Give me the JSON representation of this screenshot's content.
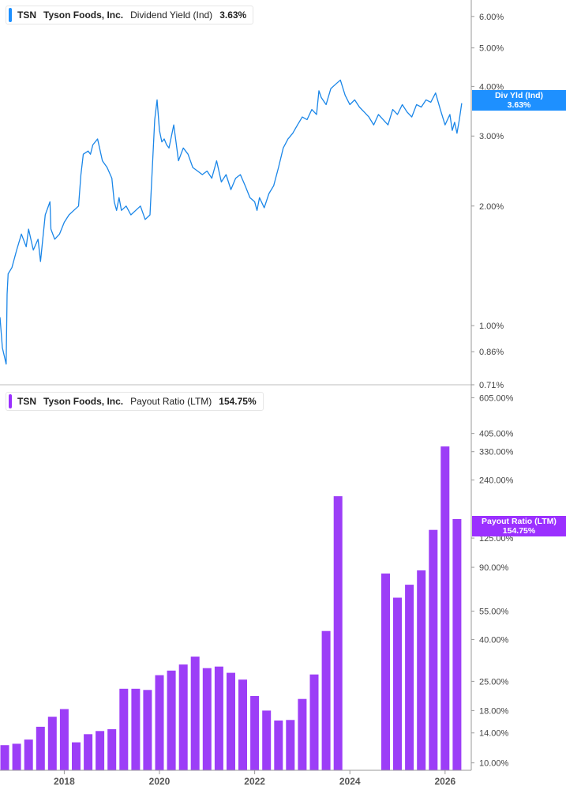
{
  "colors": {
    "yield_line": "#1a86e8",
    "payout_bar": "#9c3ef7",
    "yield_tag": "#1e90ff",
    "payout_tag": "#9b30ff",
    "axis": "#999999",
    "tick_text": "#444444"
  },
  "top_panel": {
    "legend": {
      "ticker": "TSN",
      "company": "Tyson Foods, Inc.",
      "metric": "Dividend Yield (Ind)",
      "value": "3.63%"
    },
    "tag": {
      "label": "Div Yld (Ind)",
      "value": "3.63%"
    }
  },
  "bottom_panel": {
    "legend": {
      "ticker": "TSN",
      "company": "Tyson Foods, Inc.",
      "metric": "Payout Ratio (LTM)",
      "value": "154.75%"
    },
    "tag": {
      "label": "Payout Ratio (LTM)",
      "value": "154.75%"
    }
  },
  "chart_data": [
    {
      "type": "line",
      "title": "Dividend Yield (Ind)",
      "yscale": "log",
      "ylim": [
        0.71,
        6.6
      ],
      "xlim": [
        2016.65,
        2026.55
      ],
      "yticks": [
        "6.00%",
        "5.00%",
        "4.00%",
        "3.00%",
        "2.00%",
        "1.00%",
        "0.86%",
        "0.71%"
      ],
      "xticks": [
        "2018",
        "2020",
        "2022",
        "2024",
        "2026"
      ],
      "series": [
        {
          "name": "Div Yld (Ind)",
          "x": [
            2016.65,
            2016.7,
            2016.78,
            2016.8,
            2016.82,
            2016.9,
            2017.0,
            2017.1,
            2017.2,
            2017.25,
            2017.35,
            2017.45,
            2017.5,
            2017.6,
            2017.7,
            2017.72,
            2017.8,
            2017.9,
            2018.0,
            2018.1,
            2018.2,
            2018.3,
            2018.35,
            2018.4,
            2018.5,
            2018.55,
            2018.6,
            2018.7,
            2018.8,
            2018.9,
            2019.0,
            2019.05,
            2019.1,
            2019.15,
            2019.2,
            2019.3,
            2019.4,
            2019.5,
            2019.6,
            2019.7,
            2019.8,
            2019.9,
            2019.95,
            2020.0,
            2020.05,
            2020.1,
            2020.15,
            2020.2,
            2020.3,
            2020.4,
            2020.5,
            2020.6,
            2020.7,
            2020.8,
            2020.9,
            2021.0,
            2021.1,
            2021.2,
            2021.3,
            2021.4,
            2021.5,
            2021.6,
            2021.7,
            2021.8,
            2021.9,
            2022.0,
            2022.05,
            2022.1,
            2022.2,
            2022.3,
            2022.4,
            2022.5,
            2022.6,
            2022.7,
            2022.8,
            2022.9,
            2023.0,
            2023.1,
            2023.2,
            2023.3,
            2023.35,
            2023.4,
            2023.5,
            2023.6,
            2023.7,
            2023.8,
            2023.9,
            2024.0,
            2024.1,
            2024.2,
            2024.3,
            2024.4,
            2024.5,
            2024.6,
            2024.7,
            2024.8,
            2024.9,
            2025.0,
            2025.1,
            2025.2,
            2025.3,
            2025.4,
            2025.5,
            2025.6,
            2025.7,
            2025.8,
            2025.9,
            2026.0,
            2026.1,
            2026.15,
            2026.2,
            2026.25,
            2026.3,
            2026.35
          ],
          "y": [
            1.05,
            0.88,
            0.8,
            1.2,
            1.35,
            1.4,
            1.55,
            1.7,
            1.58,
            1.75,
            1.55,
            1.65,
            1.45,
            1.9,
            2.05,
            1.75,
            1.65,
            1.7,
            1.82,
            1.9,
            1.95,
            2.0,
            2.4,
            2.7,
            2.75,
            2.7,
            2.85,
            2.95,
            2.6,
            2.5,
            2.35,
            2.05,
            1.95,
            2.1,
            1.95,
            2.0,
            1.9,
            1.95,
            2.0,
            1.85,
            1.9,
            3.3,
            3.7,
            3.1,
            2.9,
            2.95,
            2.85,
            2.8,
            3.2,
            2.6,
            2.8,
            2.7,
            2.5,
            2.45,
            2.4,
            2.45,
            2.35,
            2.6,
            2.3,
            2.4,
            2.2,
            2.35,
            2.4,
            2.25,
            2.1,
            2.05,
            1.95,
            2.1,
            1.98,
            2.15,
            2.25,
            2.5,
            2.8,
            2.95,
            3.05,
            3.2,
            3.35,
            3.3,
            3.5,
            3.4,
            3.9,
            3.75,
            3.6,
            3.95,
            4.05,
            4.15,
            3.8,
            3.6,
            3.7,
            3.55,
            3.45,
            3.35,
            3.2,
            3.4,
            3.3,
            3.2,
            3.5,
            3.4,
            3.6,
            3.45,
            3.35,
            3.6,
            3.55,
            3.7,
            3.65,
            3.85,
            3.5,
            3.2,
            3.4,
            3.1,
            3.25,
            3.05,
            3.3,
            3.63
          ]
        }
      ]
    },
    {
      "type": "bar",
      "title": "Payout Ratio (LTM)",
      "yscale": "log",
      "ylim": [
        9.2,
        700
      ],
      "xlim": [
        2016.65,
        2026.55
      ],
      "yticks": [
        "605.00%",
        "405.00%",
        "330.00%",
        "240.00%",
        "125.00%",
        "90.00%",
        "55.00%",
        "40.00%",
        "25.00%",
        "18.00%",
        "14.00%",
        "10.00%"
      ],
      "xticks": [
        "2018",
        "2020",
        "2022",
        "2024",
        "2026"
      ],
      "series": [
        {
          "name": "Payout Ratio (LTM)",
          "x": [
            2016.75,
            2017.0,
            2017.25,
            2017.5,
            2017.75,
            2018.0,
            2018.25,
            2018.5,
            2018.75,
            2019.0,
            2019.25,
            2019.5,
            2019.75,
            2020.0,
            2020.25,
            2020.5,
            2020.75,
            2021.0,
            2021.25,
            2021.5,
            2021.75,
            2022.0,
            2022.25,
            2022.5,
            2022.75,
            2023.0,
            2023.25,
            2023.5,
            2023.75,
            2024.0,
            2024.25,
            2024.5,
            2024.75,
            2025.0,
            2025.25,
            2025.5,
            2025.75,
            2026.0,
            2026.25
          ],
          "values": [
            12.2,
            12.4,
            13.0,
            15.0,
            16.8,
            18.3,
            12.6,
            13.8,
            14.3,
            14.6,
            23.0,
            23.0,
            22.7,
            26.8,
            28.2,
            30.2,
            33.0,
            29.0,
            29.5,
            27.5,
            25.5,
            21.2,
            18.0,
            16.1,
            16.2,
            20.5,
            27.0,
            44.0,
            200,
            null,
            null,
            null,
            84.0,
            64.0,
            74.0,
            87.0,
            137.0,
            350.0,
            154.75
          ]
        }
      ]
    }
  ]
}
